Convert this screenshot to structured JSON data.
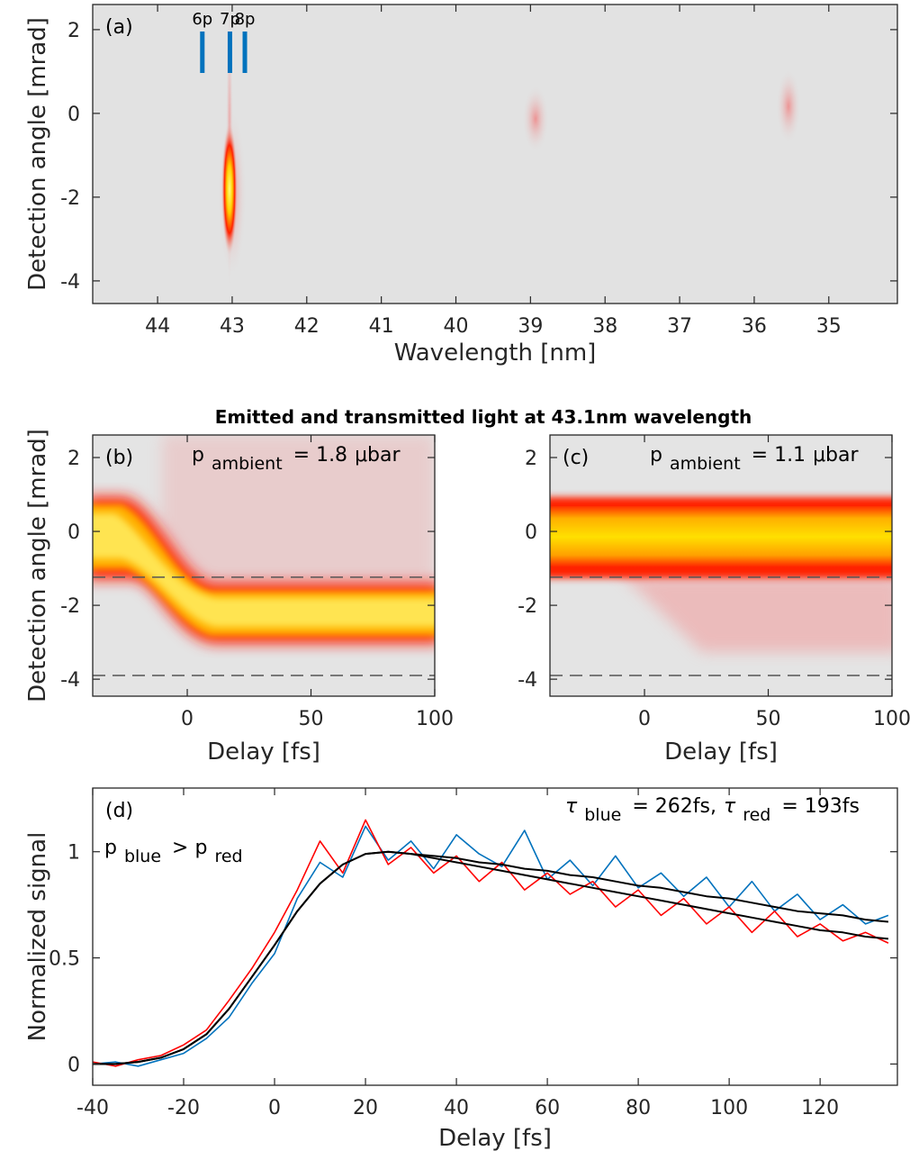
{
  "figure_title": "Emitted and transmitted light at 43.1nm wavelength",
  "chart_data": [
    {
      "type": "heatmap",
      "panel": "(a)",
      "xlabel": "Wavelength [nm]",
      "ylabel": "Detection angle [mrad]",
      "xlim": [
        44.87,
        34.08
      ],
      "ylim": [
        -4.54,
        2.6
      ],
      "xticks": [
        44,
        43,
        42,
        41,
        40,
        39,
        38,
        37,
        36,
        35
      ],
      "yticks": [
        2,
        0,
        -2,
        -4
      ],
      "markers": {
        "labels": [
          "6p",
          "7p",
          "8p"
        ],
        "x": [
          43.4,
          43.03,
          42.83
        ],
        "color": "#0072bd"
      }
    },
    {
      "type": "heatmap",
      "panel": "(b)",
      "xlabel": "Delay [fs]",
      "ylabel": "Detection angle [mrad]",
      "xlim": [
        -38.2,
        100
      ],
      "ylim": [
        -4.46,
        2.61
      ],
      "xticks": [
        0,
        50,
        100
      ],
      "yticks": [
        2,
        0,
        -2,
        -4
      ],
      "hlines": [
        -1.24,
        -3.9
      ],
      "annotations": [
        {
          "parts": [
            {
              "text": "p"
            },
            {
              "text": "ambient",
              "sub": true
            },
            {
              "text": "= 1.8"
            },
            {
              "text": "μbar"
            }
          ]
        }
      ]
    },
    {
      "type": "heatmap",
      "panel": "(c)",
      "xlabel": "Delay [fs]",
      "xlim": [
        -38.2,
        100
      ],
      "ylim": [
        -4.46,
        2.61
      ],
      "xticks": [
        0,
        50,
        100
      ],
      "yticks": [
        2,
        0,
        -2,
        -4
      ],
      "hlines": [
        -1.24,
        -3.9
      ],
      "annotations": [
        {
          "parts": [
            {
              "text": "p"
            },
            {
              "text": "ambient",
              "sub": true
            },
            {
              "text": "= 1.1"
            },
            {
              "text": "μbar"
            }
          ]
        }
      ]
    },
    {
      "type": "line",
      "panel": "(d)",
      "xlabel": "Delay [fs]",
      "ylabel": "Normalized signal",
      "xlim": [
        -40,
        137
      ],
      "ylim": [
        -0.1,
        1.3
      ],
      "xticks": [
        -40,
        -20,
        0,
        20,
        40,
        60,
        80,
        100,
        120
      ],
      "yticks": [
        0,
        0.5,
        1
      ],
      "x": [
        -40,
        -35,
        -30,
        -25,
        -20,
        -15,
        -10,
        -5,
        0,
        5,
        10,
        15,
        20,
        25,
        30,
        35,
        40,
        45,
        50,
        55,
        60,
        65,
        70,
        75,
        80,
        85,
        90,
        95,
        100,
        105,
        110,
        115,
        120,
        125,
        130,
        135
      ],
      "series": [
        {
          "color": "#0072bd",
          "values": [
            0.0,
            0.01,
            -0.01,
            0.02,
            0.05,
            0.12,
            0.22,
            0.38,
            0.52,
            0.78,
            0.95,
            0.88,
            1.12,
            0.96,
            1.05,
            0.92,
            1.08,
            0.99,
            0.93,
            1.1,
            0.87,
            0.96,
            0.84,
            0.98,
            0.83,
            0.9,
            0.79,
            0.88,
            0.74,
            0.86,
            0.72,
            0.8,
            0.68,
            0.75,
            0.66,
            0.7
          ]
        },
        {
          "color": "#ff0000",
          "values": [
            0.01,
            -0.01,
            0.02,
            0.04,
            0.09,
            0.16,
            0.3,
            0.45,
            0.62,
            0.82,
            1.05,
            0.9,
            1.15,
            0.94,
            1.02,
            0.9,
            0.98,
            0.86,
            0.95,
            0.82,
            0.9,
            0.8,
            0.86,
            0.74,
            0.82,
            0.7,
            0.78,
            0.66,
            0.74,
            0.62,
            0.72,
            0.6,
            0.66,
            0.58,
            0.62,
            0.57
          ]
        },
        {
          "color": "#000000",
          "values": [
            0,
            0,
            0.01,
            0.03,
            0.07,
            0.14,
            0.26,
            0.41,
            0.56,
            0.72,
            0.85,
            0.94,
            0.99,
            1.0,
            0.99,
            0.98,
            0.97,
            0.95,
            0.94,
            0.92,
            0.91,
            0.89,
            0.88,
            0.86,
            0.84,
            0.83,
            0.81,
            0.79,
            0.78,
            0.76,
            0.74,
            0.72,
            0.71,
            0.7,
            0.68,
            0.67
          ]
        },
        {
          "color": "#000000",
          "values": [
            0,
            0,
            0.01,
            0.03,
            0.07,
            0.14,
            0.26,
            0.41,
            0.56,
            0.72,
            0.85,
            0.94,
            0.99,
            1.0,
            0.99,
            0.97,
            0.95,
            0.93,
            0.91,
            0.89,
            0.87,
            0.85,
            0.83,
            0.81,
            0.79,
            0.77,
            0.75,
            0.73,
            0.71,
            0.69,
            0.67,
            0.65,
            0.63,
            0.62,
            0.6,
            0.59
          ]
        }
      ],
      "annotations": [
        {
          "parts": [
            {
              "text": "τ",
              "italic": true
            },
            {
              "text": "blue",
              "sub": true
            },
            {
              "text": "= 262fs,"
            },
            {
              "text": "τ",
              "italic": true
            },
            {
              "text": "red",
              "sub": true
            },
            {
              "text": "= 193fs"
            }
          ]
        },
        {
          "parts": [
            {
              "text": "p"
            },
            {
              "text": "blue",
              "sub": true
            },
            {
              "text": "> p"
            },
            {
              "text": "red",
              "sub": true
            }
          ]
        }
      ]
    }
  ]
}
